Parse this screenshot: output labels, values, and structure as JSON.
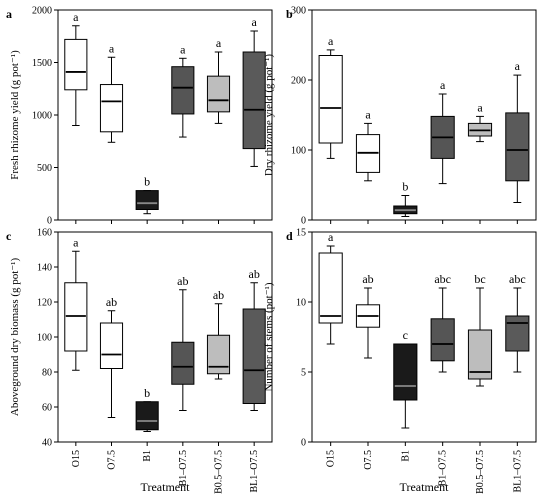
{
  "chart_data": [
    {
      "type": "box",
      "panel_label": "a",
      "ylabel": "Fresh rhizome yield (g pot⁻¹)",
      "ylim": [
        0,
        2000
      ],
      "yticks": [
        0,
        500,
        1000,
        1500,
        2000
      ],
      "categories": [
        "O15",
        "O7.5",
        "B1",
        "B1–O7.5",
        "B0.5–O7.5",
        "BL1–O7.5"
      ],
      "fills": [
        "#ffffff",
        "#ffffff",
        "#1a1a1a",
        "#555555",
        "#bdbdbd",
        "#5a5a5a"
      ],
      "medianColors": [
        "#000000",
        "#000000",
        "#888888",
        "#000000",
        "#000000",
        "#000000"
      ],
      "boxes": [
        {
          "min": 900,
          "q1": 1240,
          "median": 1410,
          "q3": 1720,
          "max": 1850,
          "sig": "a"
        },
        {
          "min": 740,
          "q1": 840,
          "median": 1130,
          "q3": 1290,
          "max": 1550,
          "sig": "a"
        },
        {
          "min": 60,
          "q1": 100,
          "median": 160,
          "q3": 280,
          "max": 280,
          "sig": "b"
        },
        {
          "min": 790,
          "q1": 1010,
          "median": 1260,
          "q3": 1460,
          "max": 1540,
          "sig": "a"
        },
        {
          "min": 920,
          "q1": 1030,
          "median": 1140,
          "q3": 1370,
          "max": 1600,
          "sig": "a"
        },
        {
          "min": 510,
          "q1": 680,
          "median": 1050,
          "q3": 1600,
          "max": 1800,
          "sig": "a"
        }
      ]
    },
    {
      "type": "box",
      "panel_label": "b",
      "ylabel": "Dry rhizome yield (g pot⁻¹)",
      "ylim": [
        0,
        300
      ],
      "yticks": [
        0,
        100,
        200,
        300
      ],
      "categories": [
        "O15",
        "O7.5",
        "B1",
        "B1–O7.5",
        "B0.5–O7.5",
        "BL1–O7.5"
      ],
      "fills": [
        "#ffffff",
        "#ffffff",
        "#1a1a1a",
        "#555555",
        "#bdbdbd",
        "#5a5a5a"
      ],
      "medianColors": [
        "#000000",
        "#000000",
        "#888888",
        "#000000",
        "#000000",
        "#000000"
      ],
      "boxes": [
        {
          "min": 88,
          "q1": 110,
          "median": 160,
          "q3": 235,
          "max": 243,
          "sig": "a"
        },
        {
          "min": 56,
          "q1": 68,
          "median": 96,
          "q3": 122,
          "max": 138,
          "sig": "a"
        },
        {
          "min": 5,
          "q1": 9,
          "median": 14,
          "q3": 20,
          "max": 35,
          "sig": "b"
        },
        {
          "min": 52,
          "q1": 88,
          "median": 118,
          "q3": 148,
          "max": 180,
          "sig": "a"
        },
        {
          "min": 112,
          "q1": 120,
          "median": 128,
          "q3": 138,
          "max": 148,
          "sig": "a"
        },
        {
          "min": 25,
          "q1": 56,
          "median": 100,
          "q3": 153,
          "max": 207,
          "sig": "a"
        }
      ]
    },
    {
      "type": "box",
      "panel_label": "c",
      "ylabel": "Aboveground dry biomass (g pot⁻¹)",
      "xlabel": "Treatment",
      "ylim": [
        40,
        160
      ],
      "yticks": [
        40,
        60,
        80,
        100,
        120,
        140,
        160
      ],
      "categories": [
        "O15",
        "O7.5",
        "B1",
        "B1–O7.5",
        "B0.5–O7.5",
        "BL1–O7.5"
      ],
      "fills": [
        "#ffffff",
        "#ffffff",
        "#1a1a1a",
        "#555555",
        "#bdbdbd",
        "#5a5a5a"
      ],
      "medianColors": [
        "#000000",
        "#000000",
        "#888888",
        "#000000",
        "#000000",
        "#000000"
      ],
      "boxes": [
        {
          "min": 81,
          "q1": 92,
          "median": 112,
          "q3": 131,
          "max": 149,
          "sig": "a"
        },
        {
          "min": 54,
          "q1": 82,
          "median": 90,
          "q3": 108,
          "max": 115,
          "sig": "ab"
        },
        {
          "min": 46,
          "q1": 47,
          "median": 52,
          "q3": 63,
          "max": 63,
          "sig": "b"
        },
        {
          "min": 58,
          "q1": 73,
          "median": 83,
          "q3": 97,
          "max": 127,
          "sig": "ab"
        },
        {
          "min": 76,
          "q1": 79,
          "median": 83,
          "q3": 101,
          "max": 119,
          "sig": "ab"
        },
        {
          "min": 58,
          "q1": 62,
          "median": 81,
          "q3": 116,
          "max": 131,
          "sig": "ab"
        }
      ]
    },
    {
      "type": "box",
      "panel_label": "d",
      "ylabel": "Number of stems (pot⁻¹)",
      "xlabel": "Treatment",
      "ylim": [
        0,
        15
      ],
      "yticks": [
        0,
        5,
        10,
        15
      ],
      "categories": [
        "O15",
        "O7.5",
        "B1",
        "B1–O7.5",
        "B0.5–O7.5",
        "BL1–O7.5"
      ],
      "fills": [
        "#ffffff",
        "#ffffff",
        "#1a1a1a",
        "#555555",
        "#bdbdbd",
        "#5a5a5a"
      ],
      "medianColors": [
        "#000000",
        "#000000",
        "#888888",
        "#000000",
        "#000000",
        "#000000"
      ],
      "boxes": [
        {
          "min": 7,
          "q1": 8.5,
          "median": 9,
          "q3": 13.5,
          "max": 14,
          "sig": "a"
        },
        {
          "min": 6,
          "q1": 8.2,
          "median": 9,
          "q3": 9.8,
          "max": 11,
          "sig": "ab"
        },
        {
          "min": 1,
          "q1": 3,
          "median": 4,
          "q3": 7,
          "max": 7,
          "sig": "c"
        },
        {
          "min": 5,
          "q1": 5.8,
          "median": 7,
          "q3": 8.8,
          "max": 11,
          "sig": "abc"
        },
        {
          "min": 4,
          "q1": 4.5,
          "median": 5,
          "q3": 8,
          "max": 11,
          "sig": "bc"
        },
        {
          "min": 5,
          "q1": 6.5,
          "median": 8.5,
          "q3": 9,
          "max": 11,
          "sig": "abc"
        }
      ]
    }
  ]
}
